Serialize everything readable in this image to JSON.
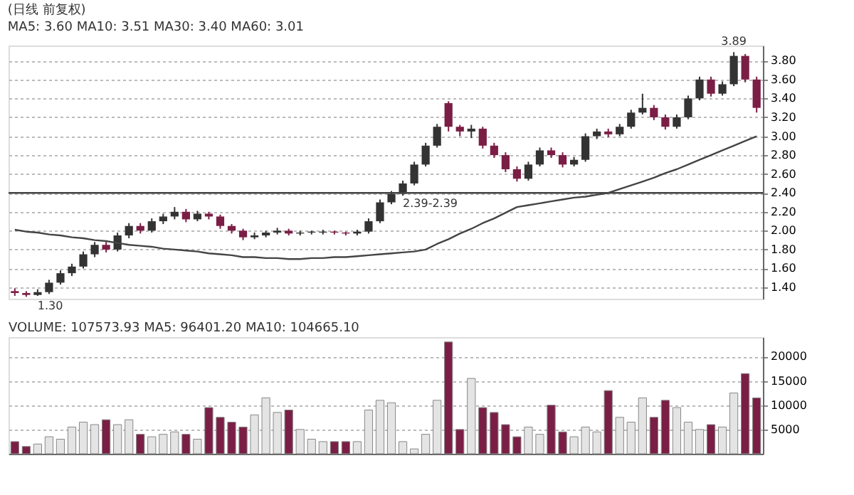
{
  "chart_data": [
    {
      "type": "candlestick",
      "title": "(日线 前复权)",
      "subtitle": "MA5: 3.60  MA10: 3.51  MA30: 3.40  MA60: 3.01",
      "categories": [
        null,
        null,
        null,
        null,
        null,
        null,
        null,
        null,
        null,
        null,
        null,
        null,
        null,
        null,
        null,
        null,
        null,
        null,
        null,
        null,
        null,
        null,
        null,
        null,
        null,
        null,
        null,
        null,
        null,
        null,
        null,
        null,
        null,
        null,
        null,
        null,
        null,
        null,
        null,
        null,
        null,
        null,
        null,
        null,
        null,
        null,
        null,
        null,
        null,
        null,
        null,
        null,
        null,
        null,
        null,
        null,
        null,
        null,
        null,
        null,
        null,
        null,
        null,
        null,
        null,
        null
      ],
      "ohlc": [
        [
          1.36,
          1.39,
          1.31,
          1.34
        ],
        [
          1.34,
          1.36,
          1.3,
          1.32
        ],
        [
          1.32,
          1.38,
          1.31,
          1.35
        ],
        [
          1.35,
          1.48,
          1.33,
          1.45
        ],
        [
          1.45,
          1.58,
          1.43,
          1.55
        ],
        [
          1.55,
          1.65,
          1.52,
          1.62
        ],
        [
          1.62,
          1.78,
          1.6,
          1.75
        ],
        [
          1.75,
          1.88,
          1.72,
          1.85
        ],
        [
          1.85,
          1.88,
          1.77,
          1.8
        ],
        [
          1.8,
          1.98,
          1.78,
          1.95
        ],
        [
          1.95,
          2.08,
          1.92,
          2.05
        ],
        [
          2.05,
          2.08,
          1.97,
          2.0
        ],
        [
          2.0,
          2.13,
          1.98,
          2.1
        ],
        [
          2.1,
          2.18,
          2.07,
          2.15
        ],
        [
          2.15,
          2.25,
          2.12,
          2.2
        ],
        [
          2.2,
          2.23,
          2.09,
          2.12
        ],
        [
          2.12,
          2.21,
          2.1,
          2.18
        ],
        [
          2.18,
          2.2,
          2.12,
          2.15
        ],
        [
          2.15,
          2.17,
          2.02,
          2.05
        ],
        [
          2.05,
          2.07,
          1.97,
          2.0
        ],
        [
          2.0,
          2.02,
          1.9,
          1.93
        ],
        [
          1.93,
          1.98,
          1.91,
          1.95
        ],
        [
          1.95,
          2.0,
          1.93,
          1.98
        ],
        [
          1.98,
          2.03,
          1.96,
          2.0
        ],
        [
          2.0,
          2.02,
          1.95,
          1.97
        ],
        [
          1.97,
          2.0,
          1.95,
          1.98
        ],
        [
          1.98,
          2.0,
          1.96,
          1.99
        ],
        [
          1.98,
          2.01,
          1.96,
          1.99
        ],
        [
          1.99,
          2.0,
          1.96,
          1.98
        ],
        [
          1.98,
          1.99,
          1.95,
          1.97
        ],
        [
          1.97,
          2.01,
          1.95,
          1.99
        ],
        [
          1.99,
          2.13,
          1.97,
          2.1
        ],
        [
          2.1,
          2.33,
          2.08,
          2.3
        ],
        [
          2.3,
          2.42,
          2.28,
          2.39
        ],
        [
          2.39,
          2.53,
          2.37,
          2.5
        ],
        [
          2.5,
          2.73,
          2.48,
          2.7
        ],
        [
          2.7,
          2.93,
          2.68,
          2.9
        ],
        [
          2.9,
          3.13,
          2.88,
          3.1
        ],
        [
          3.35,
          3.37,
          3.05,
          3.1
        ],
        [
          3.1,
          3.12,
          3.0,
          3.05
        ],
        [
          3.05,
          3.12,
          2.98,
          3.08
        ],
        [
          3.08,
          3.1,
          2.87,
          2.9
        ],
        [
          2.9,
          2.93,
          2.77,
          2.8
        ],
        [
          2.8,
          2.83,
          2.62,
          2.65
        ],
        [
          2.65,
          2.68,
          2.52,
          2.55
        ],
        [
          2.55,
          2.73,
          2.53,
          2.7
        ],
        [
          2.7,
          2.88,
          2.68,
          2.85
        ],
        [
          2.85,
          2.88,
          2.77,
          2.8
        ],
        [
          2.8,
          2.83,
          2.67,
          2.7
        ],
        [
          2.7,
          2.78,
          2.68,
          2.75
        ],
        [
          2.75,
          3.03,
          2.73,
          3.0
        ],
        [
          3.0,
          3.08,
          2.97,
          3.05
        ],
        [
          3.05,
          3.08,
          2.99,
          3.02
        ],
        [
          3.02,
          3.13,
          3.0,
          3.1
        ],
        [
          3.1,
          3.28,
          3.08,
          3.25
        ],
        [
          3.25,
          3.45,
          3.23,
          3.3
        ],
        [
          3.3,
          3.33,
          3.17,
          3.2
        ],
        [
          3.2,
          3.23,
          3.07,
          3.1
        ],
        [
          3.1,
          3.23,
          3.08,
          3.2
        ],
        [
          3.2,
          3.43,
          3.18,
          3.4
        ],
        [
          3.4,
          3.63,
          3.38,
          3.6
        ],
        [
          3.6,
          3.63,
          3.42,
          3.45
        ],
        [
          3.45,
          3.58,
          3.43,
          3.55
        ],
        [
          3.55,
          3.89,
          3.53,
          3.85
        ],
        [
          3.85,
          3.87,
          3.57,
          3.6
        ],
        [
          3.6,
          3.63,
          3.25,
          3.3
        ]
      ],
      "colors": [
        "#7b1e45",
        "#7b1e45",
        "#333333",
        "#333333",
        "#333333",
        "#333333",
        "#333333",
        "#333333",
        "#7b1e45",
        "#333333",
        "#333333",
        "#7b1e45",
        "#333333",
        "#333333",
        "#333333",
        "#7b1e45",
        "#333333",
        "#7b1e45",
        "#7b1e45",
        "#7b1e45",
        "#7b1e45",
        "#333333",
        "#333333",
        "#333333",
        "#7b1e45",
        "#333333",
        "#333333",
        "#333333",
        "#7b1e45",
        "#7b1e45",
        "#333333",
        "#333333",
        "#333333",
        "#333333",
        "#333333",
        "#333333",
        "#333333",
        "#333333",
        "#7b1e45",
        "#7b1e45",
        "#333333",
        "#7b1e45",
        "#7b1e45",
        "#7b1e45",
        "#7b1e45",
        "#333333",
        "#333333",
        "#7b1e45",
        "#7b1e45",
        "#333333",
        "#333333",
        "#333333",
        "#7b1e45",
        "#333333",
        "#333333",
        "#333333",
        "#7b1e45",
        "#7b1e45",
        "#333333",
        "#333333",
        "#333333",
        "#7b1e45",
        "#333333",
        "#333333",
        "#7b1e45",
        "#7b1e45"
      ],
      "series": [
        {
          "type": "line",
          "color": "#444444",
          "values": [
            2.01,
            1.99,
            1.98,
            1.96,
            1.95,
            1.93,
            1.92,
            1.9,
            1.89,
            1.87,
            1.85,
            1.84,
            1.83,
            1.81,
            1.8,
            1.79,
            1.78,
            1.76,
            1.75,
            1.74,
            1.72,
            1.72,
            1.71,
            1.71,
            1.7,
            1.7,
            1.71,
            1.71,
            1.72,
            1.72,
            1.73,
            1.74,
            1.75,
            1.76,
            1.77,
            1.78,
            1.8,
            1.86,
            1.91,
            1.97,
            2.02,
            2.08,
            2.13,
            2.19,
            2.25,
            2.27,
            2.29,
            2.31,
            2.33,
            2.35,
            2.36,
            2.38,
            2.4,
            2.44,
            2.48,
            2.52,
            2.56,
            2.61,
            2.65,
            2.7,
            2.75,
            2.8,
            2.85,
            2.9,
            2.95,
            3.0
          ]
        }
      ],
      "ylim": [
        1.28,
        3.96
      ],
      "yticks": [
        {
          "value": 1.4,
          "label": "1.40"
        },
        {
          "value": 1.6,
          "label": "1.60"
        },
        {
          "value": 1.8,
          "label": "1.80"
        },
        {
          "value": 2.0,
          "label": "2.00"
        },
        {
          "value": 2.2,
          "label": "2.20"
        },
        {
          "value": 2.4,
          "label": "2.40"
        },
        {
          "value": 2.6,
          "label": "2.60"
        },
        {
          "value": 2.8,
          "label": "2.80"
        },
        {
          "value": 3.0,
          "label": "3.00"
        },
        {
          "value": 3.2,
          "label": "3.20"
        },
        {
          "value": 3.4,
          "label": "3.40"
        },
        {
          "value": 3.6,
          "label": "3.60"
        },
        {
          "value": 3.8,
          "label": "3.80"
        }
      ],
      "ref_lines": [
        {
          "axis": "y",
          "value": 2.4,
          "color": "#444444"
        }
      ],
      "annotations": [
        {
          "text": "1.30",
          "y": 1.3
        },
        {
          "text": "2.39-2.39",
          "y": 2.39
        },
        {
          "text": "3.89",
          "y": 3.89
        }
      ],
      "grid": "y",
      "tick_labels": "y"
    },
    {
      "type": "bar",
      "title": "VOLUME: 107573.93  MA5: 96401.20  MA10: 104665.10",
      "categories": [
        null,
        null,
        null,
        null,
        null,
        null,
        null,
        null,
        null,
        null,
        null,
        null,
        null,
        null,
        null,
        null,
        null,
        null,
        null,
        null,
        null,
        null,
        null,
        null,
        null,
        null,
        null,
        null,
        null,
        null,
        null,
        null,
        null,
        null,
        null,
        null,
        null,
        null,
        null,
        null,
        null,
        null,
        null,
        null,
        null,
        null,
        null,
        null,
        null,
        null,
        null,
        null,
        null,
        null,
        null,
        null,
        null,
        null,
        null,
        null,
        null,
        null,
        null,
        null,
        null,
        null
      ],
      "values": [
        2500,
        1500,
        2000,
        3500,
        3000,
        5500,
        6500,
        6000,
        7000,
        6000,
        7000,
        4000,
        3500,
        4000,
        4500,
        4000,
        3000,
        9500,
        7500,
        6500,
        5500,
        8000,
        11500,
        8500,
        9000,
        5000,
        3000,
        2500,
        2500,
        2500,
        2500,
        9000,
        11000,
        10500,
        2500,
        1000,
        4000,
        11000,
        23000,
        5000,
        15500,
        9500,
        8500,
        6000,
        3500,
        5500,
        4000,
        10000,
        4500,
        3500,
        5500,
        4500,
        13000,
        7500,
        6500,
        11500,
        7500,
        11000,
        9500,
        6500,
        5000,
        6000,
        5500,
        12500,
        16500,
        11500
      ],
      "colors": [
        "#7b1e45",
        "#7b1e45",
        "#e4e4e4",
        "#e4e4e4",
        "#e4e4e4",
        "#e4e4e4",
        "#e4e4e4",
        "#e4e4e4",
        "#7b1e45",
        "#e4e4e4",
        "#e4e4e4",
        "#7b1e45",
        "#e4e4e4",
        "#e4e4e4",
        "#e4e4e4",
        "#7b1e45",
        "#e4e4e4",
        "#7b1e45",
        "#7b1e45",
        "#7b1e45",
        "#7b1e45",
        "#e4e4e4",
        "#e4e4e4",
        "#e4e4e4",
        "#7b1e45",
        "#e4e4e4",
        "#e4e4e4",
        "#e4e4e4",
        "#7b1e45",
        "#7b1e45",
        "#e4e4e4",
        "#e4e4e4",
        "#e4e4e4",
        "#e4e4e4",
        "#e4e4e4",
        "#e4e4e4",
        "#e4e4e4",
        "#e4e4e4",
        "#7b1e45",
        "#7b1e45",
        "#e4e4e4",
        "#7b1e45",
        "#7b1e45",
        "#7b1e45",
        "#7b1e45",
        "#e4e4e4",
        "#e4e4e4",
        "#7b1e45",
        "#7b1e45",
        "#e4e4e4",
        "#e4e4e4",
        "#e4e4e4",
        "#7b1e45",
        "#e4e4e4",
        "#e4e4e4",
        "#e4e4e4",
        "#7b1e45",
        "#7b1e45",
        "#e4e4e4",
        "#e4e4e4",
        "#e4e4e4",
        "#7b1e45",
        "#e4e4e4",
        "#e4e4e4",
        "#7b1e45",
        "#7b1e45"
      ],
      "ylim": [
        0,
        24000
      ],
      "yticks": [
        5000,
        10000,
        15000,
        20000
      ],
      "grid": "y",
      "tick_labels": "y"
    }
  ]
}
